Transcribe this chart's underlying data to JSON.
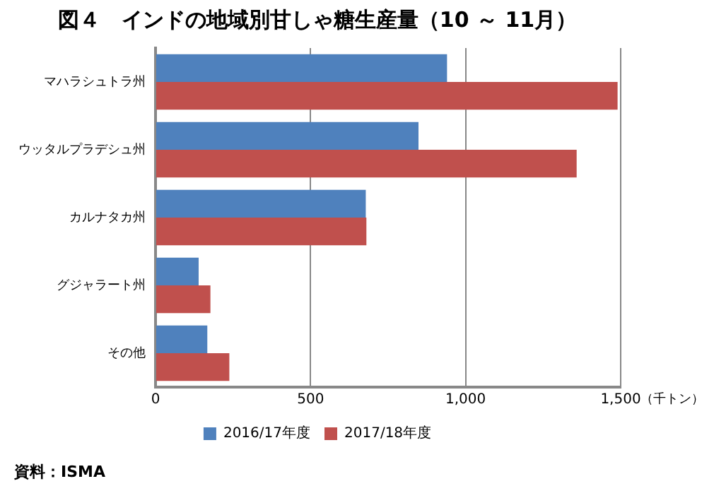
{
  "chart_data": {
    "type": "bar",
    "orientation": "horizontal",
    "title": "図４　インドの地域別甘しゃ糖生産量（10 ～ 11月）",
    "xlabel": "（千トン）",
    "categories": [
      "マハラシュトラ州",
      "ウッタルプラデシュ州",
      "カルナタカ州",
      "グジャラート州",
      "その他"
    ],
    "series": [
      {
        "name": "2016/17年度",
        "color": "#4f81bd",
        "values": [
          940,
          848,
          678,
          139,
          167
        ]
      },
      {
        "name": "2017/18年度",
        "color": "#c0504d",
        "values": [
          1490,
          1358,
          680,
          177,
          238
        ]
      }
    ],
    "xlim": [
      0,
      1500
    ],
    "xticks": [
      0,
      {
        "value": 500,
        "label": "500"
      },
      {
        "value": 1000,
        "label": "1,000"
      },
      {
        "value": 1500,
        "label": "1,500"
      }
    ],
    "grid": "x",
    "legend": "bottom",
    "annotations": [
      "資料：ISMA"
    ]
  }
}
